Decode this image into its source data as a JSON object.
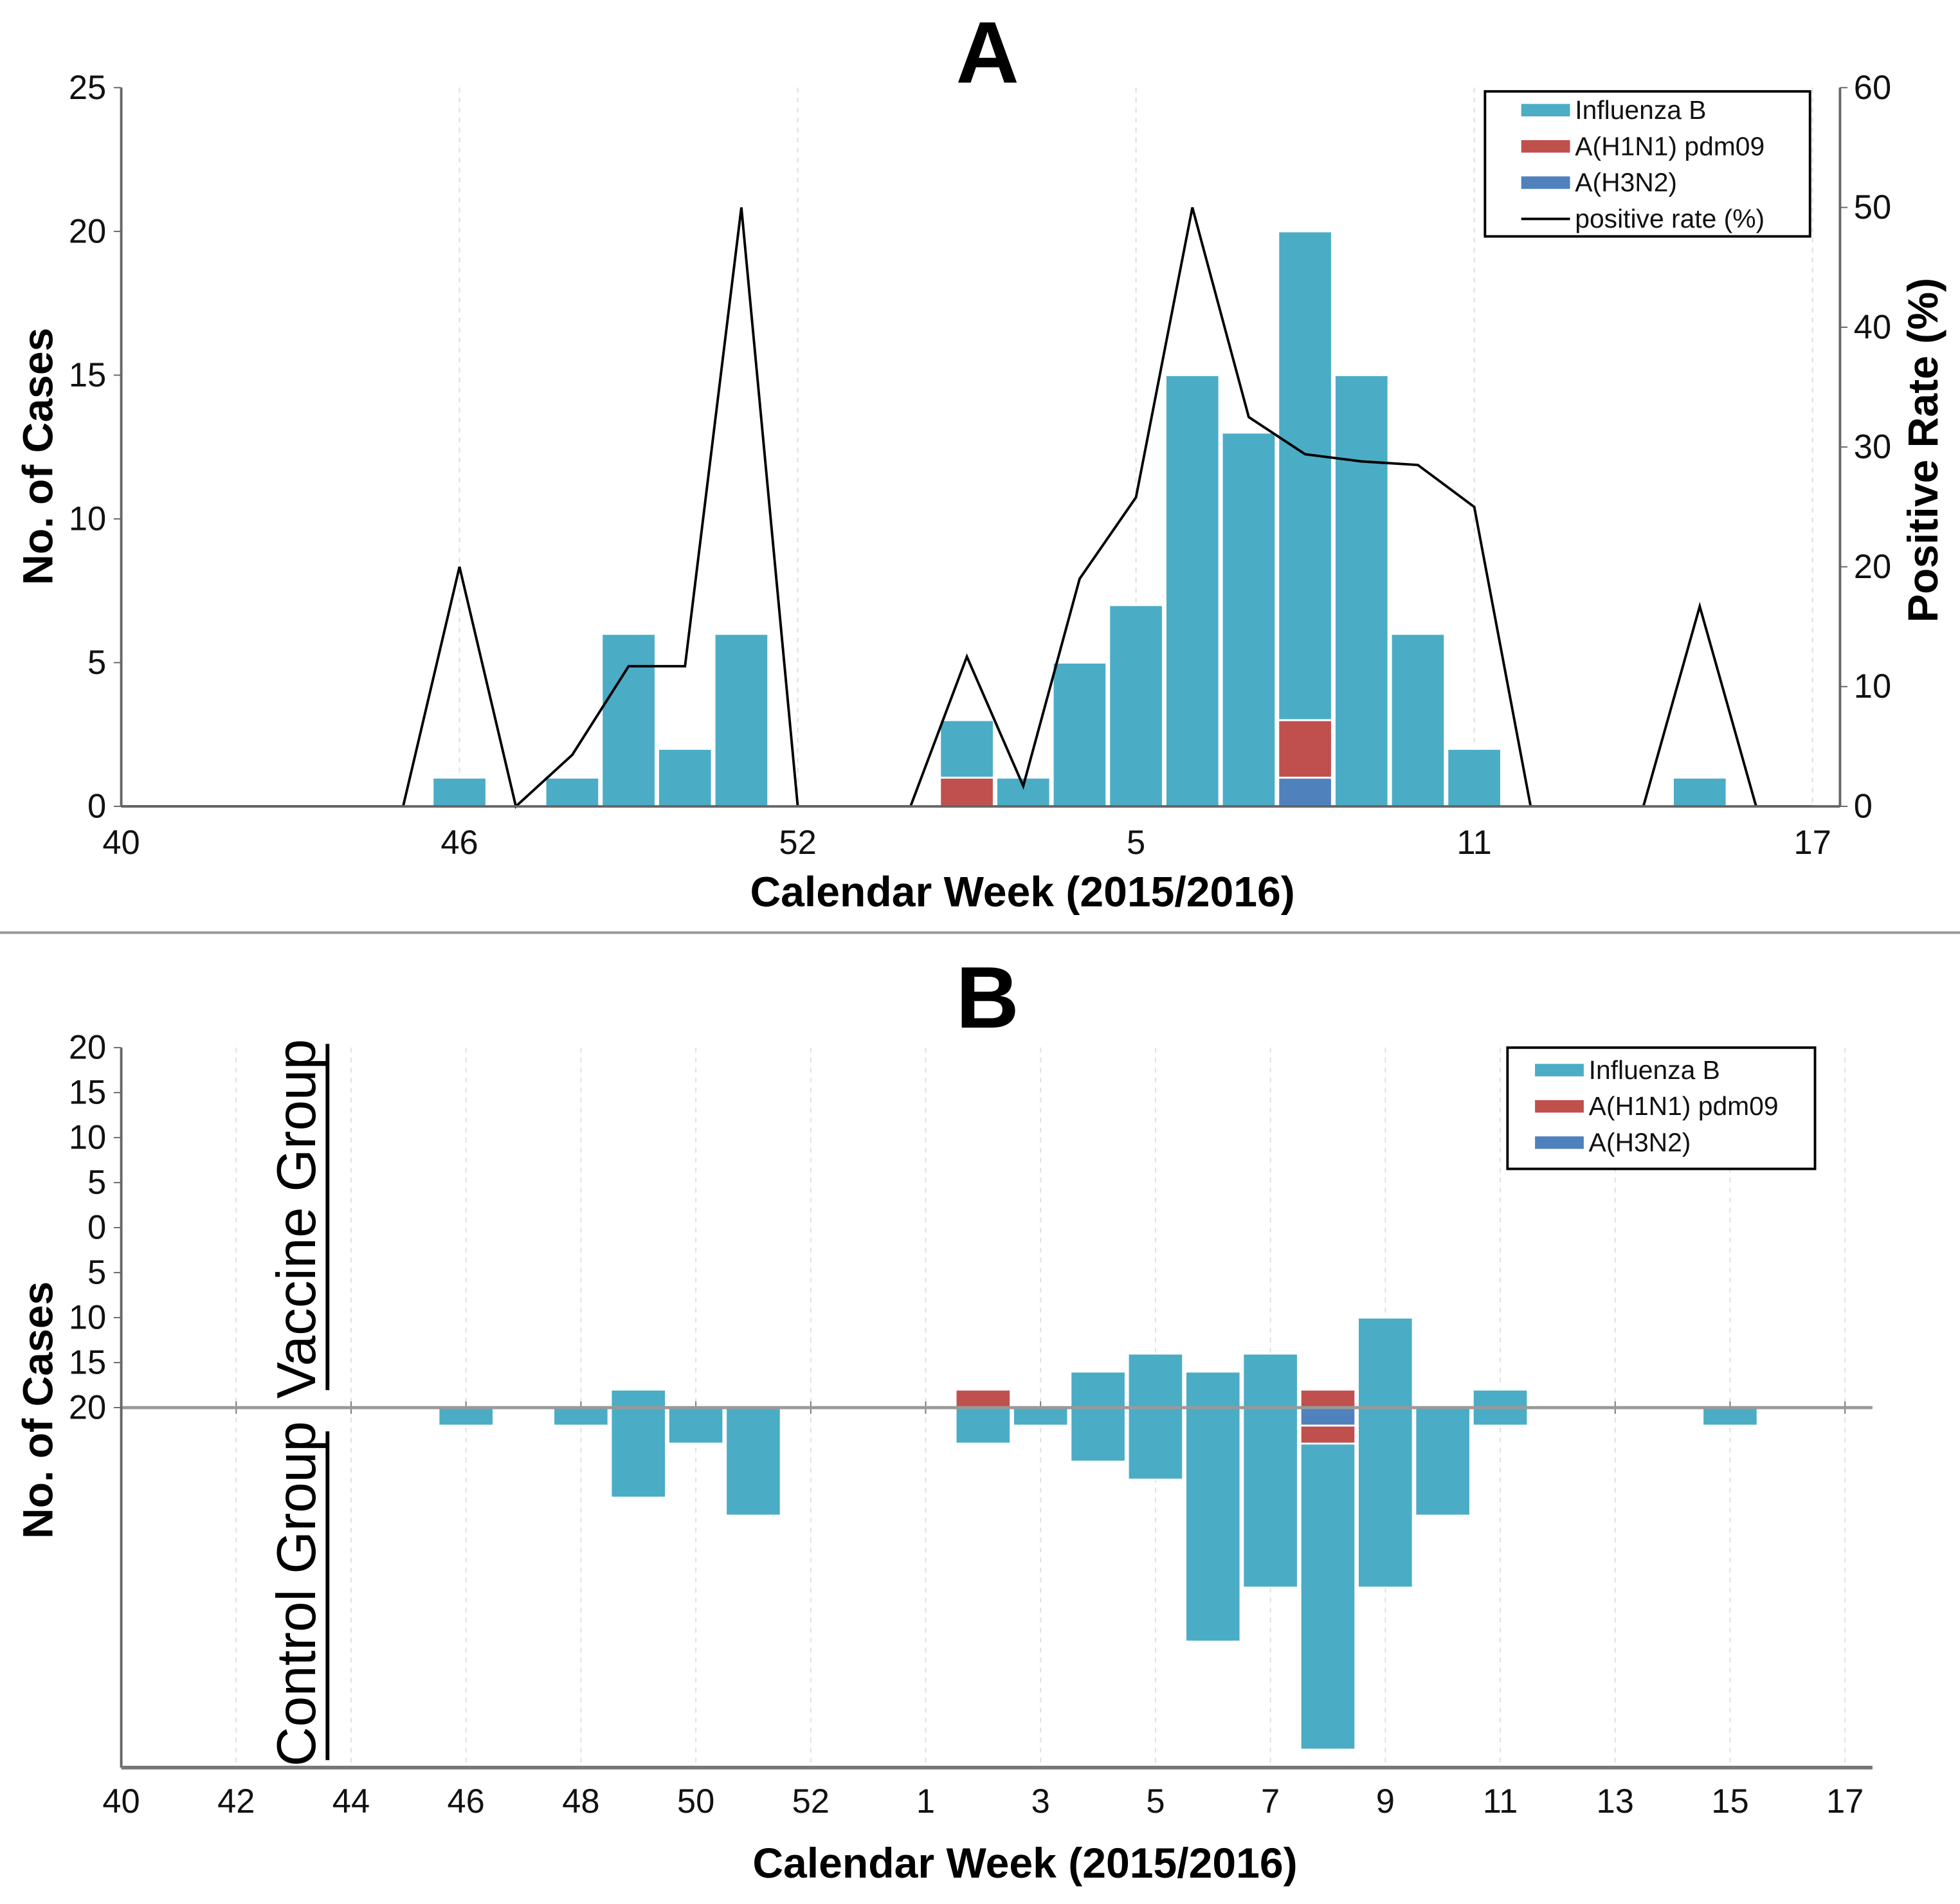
{
  "chart_data": [
    {
      "type": "bar",
      "panel": "A",
      "title": "A",
      "xlabel": "Calendar Week (2015/2016)",
      "ylabel": "No. of Cases",
      "y2label": "Positive Rate (%)",
      "ylim": [
        0,
        25
      ],
      "y2lim": [
        0,
        60
      ],
      "yticks": [
        0,
        5,
        10,
        15,
        20,
        25
      ],
      "y2ticks": [
        0,
        10,
        20,
        30,
        40,
        50,
        60
      ],
      "xtick_labels": [
        "40",
        "46",
        "52",
        "5",
        "11",
        "17"
      ],
      "weeks": [
        "40",
        "41",
        "42",
        "43",
        "44",
        "45",
        "46",
        "47",
        "48",
        "49",
        "50",
        "51",
        "52",
        "53",
        "1",
        "2",
        "3",
        "4",
        "5",
        "6",
        "7",
        "8",
        "9",
        "10",
        "11",
        "12",
        "13",
        "14",
        "15",
        "16",
        "17"
      ],
      "series": [
        {
          "name": "Influenza B",
          "color": "#4bacc6",
          "values": [
            0,
            0,
            0,
            0,
            0,
            0,
            1,
            0,
            1,
            6,
            2,
            6,
            0,
            0,
            0,
            2,
            1,
            5,
            7,
            15,
            13,
            17,
            15,
            6,
            2,
            0,
            0,
            0,
            1,
            0,
            0
          ]
        },
        {
          "name": "A(H1N1) pdm09",
          "color": "#c0504d",
          "values": [
            0,
            0,
            0,
            0,
            0,
            0,
            0,
            0,
            0,
            0,
            0,
            0,
            0,
            0,
            0,
            1,
            0,
            0,
            0,
            0,
            0,
            2,
            0,
            0,
            0,
            0,
            0,
            0,
            0,
            0,
            0
          ]
        },
        {
          "name": "A(H3N2)",
          "color": "#4f81bd",
          "values": [
            0,
            0,
            0,
            0,
            0,
            0,
            0,
            0,
            0,
            0,
            0,
            0,
            0,
            0,
            0,
            0,
            0,
            0,
            0,
            0,
            0,
            1,
            0,
            0,
            0,
            0,
            0,
            0,
            0,
            0,
            0
          ]
        },
        {
          "name": "positive rate (%)",
          "color": "#000000",
          "axis": "right",
          "type": "line",
          "values": [
            0,
            0,
            0,
            0,
            0,
            0,
            20,
            0,
            4.3,
            11.7,
            11.7,
            50,
            0,
            0,
            0,
            12.5,
            1.7,
            19,
            25.8,
            50,
            32.5,
            29.4,
            28.8,
            28.5,
            25,
            0,
            0,
            0,
            16.7,
            0,
            0
          ]
        }
      ],
      "legend": "top-right"
    },
    {
      "type": "bar",
      "panel": "B",
      "title": "B",
      "xlabel": "Calendar Week (2015/2016)",
      "ylabel": "No. of Cases",
      "upper_label": "Vaccine Group",
      "lower_label": "Control Group",
      "ylim": [
        -20,
        20
      ],
      "yticks": [
        "20",
        "15",
        "10",
        "5",
        "0",
        "5",
        "10",
        "15",
        "20"
      ],
      "xtick_labels": [
        "40",
        "42",
        "44",
        "46",
        "48",
        "50",
        "52",
        "1",
        "3",
        "5",
        "7",
        "9",
        "11",
        "13",
        "15",
        "17"
      ],
      "weeks": [
        "40",
        "41",
        "42",
        "43",
        "44",
        "45",
        "46",
        "47",
        "48",
        "49",
        "50",
        "51",
        "52",
        "53",
        "1",
        "2",
        "3",
        "4",
        "5",
        "6",
        "7",
        "8",
        "9",
        "10",
        "11",
        "12",
        "13",
        "14",
        "15",
        "16",
        "17"
      ],
      "vaccine": [
        {
          "name": "Influenza B",
          "values": [
            0,
            0,
            0,
            0,
            0,
            0,
            0,
            0,
            0,
            1,
            0,
            0,
            0,
            0,
            0,
            0,
            0,
            2,
            3,
            2,
            3,
            0,
            5,
            0,
            1,
            0,
            0,
            0,
            0,
            0,
            0
          ]
        },
        {
          "name": "A(H1N1) pdm09",
          "values": [
            0,
            0,
            0,
            0,
            0,
            0,
            0,
            0,
            0,
            0,
            0,
            0,
            0,
            0,
            0,
            1,
            0,
            0,
            0,
            0,
            0,
            1,
            0,
            0,
            0,
            0,
            0,
            0,
            0,
            0,
            0
          ]
        },
        {
          "name": "A(H3N2)",
          "values": [
            0,
            0,
            0,
            0,
            0,
            0,
            0,
            0,
            0,
            0,
            0,
            0,
            0,
            0,
            0,
            0,
            0,
            0,
            0,
            0,
            0,
            0,
            0,
            0,
            0,
            0,
            0,
            0,
            0,
            0,
            0
          ]
        }
      ],
      "control": [
        {
          "name": "Influenza B",
          "values": [
            0,
            0,
            0,
            0,
            0,
            0,
            1,
            0,
            1,
            5,
            2,
            6,
            0,
            0,
            0,
            2,
            1,
            3,
            4,
            13,
            10,
            17,
            10,
            6,
            1,
            0,
            0,
            0,
            1,
            0,
            0
          ]
        },
        {
          "name": "A(H1N1) pdm09",
          "values": [
            0,
            0,
            0,
            0,
            0,
            0,
            0,
            0,
            0,
            0,
            0,
            0,
            0,
            0,
            0,
            0,
            0,
            0,
            0,
            0,
            0,
            1,
            0,
            0,
            0,
            0,
            0,
            0,
            0,
            0,
            0
          ]
        },
        {
          "name": "A(H3N2)",
          "values": [
            0,
            0,
            0,
            0,
            0,
            0,
            0,
            0,
            0,
            0,
            0,
            0,
            0,
            0,
            0,
            0,
            0,
            0,
            0,
            0,
            0,
            1,
            0,
            0,
            0,
            0,
            0,
            0,
            0,
            0,
            0
          ]
        }
      ],
      "legend": "top-right"
    }
  ]
}
